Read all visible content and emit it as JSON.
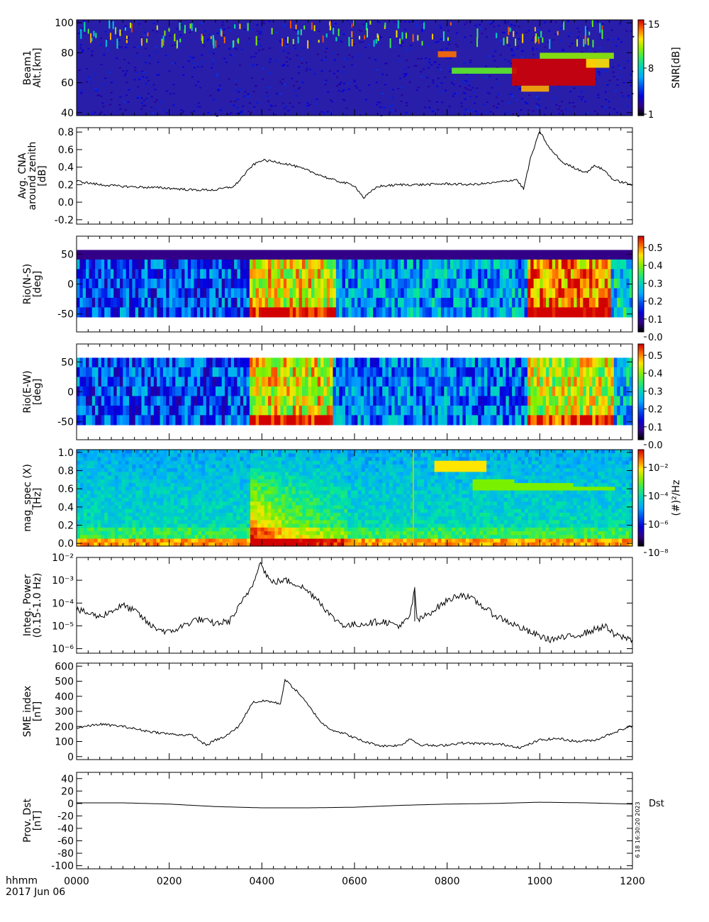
{
  "chart_data": [
    {
      "type": "heatmap",
      "ylabel": [
        "Beam1",
        "Alt.[km]"
      ],
      "ylim": [
        38,
        102
      ],
      "yticks": [
        40,
        60,
        80,
        100
      ],
      "colorbar": {
        "label": "SNR[dB]",
        "ticks": [
          "15",
          "8",
          "1"
        ],
        "range": [
          1,
          15
        ]
      },
      "features": [
        {
          "t0": 7.8,
          "t1": 8.2,
          "y0": 77,
          "y1": 81,
          "level": 0.9
        },
        {
          "t0": 8.1,
          "t1": 9.5,
          "y0": 66,
          "y1": 70,
          "level": 0.65
        },
        {
          "t0": 9.4,
          "t1": 11.2,
          "y0": 58,
          "y1": 76,
          "level": 1.0
        },
        {
          "t0": 9.6,
          "t1": 10.2,
          "y0": 54,
          "y1": 58,
          "level": 0.85
        },
        {
          "t0": 10.0,
          "t1": 11.6,
          "y0": 76,
          "y1": 80,
          "level": 0.7
        },
        {
          "t0": 11.0,
          "t1": 11.5,
          "y0": 70,
          "y1": 76,
          "level": 0.8
        }
      ]
    },
    {
      "type": "line",
      "ylabel": [
        "Avg. CNA",
        "around zenith",
        "[dB]"
      ],
      "ylim": [
        -0.25,
        0.85
      ],
      "yticks": [
        -0.2,
        0.0,
        0.2,
        0.4,
        0.6,
        0.8
      ],
      "yticklabels": [
        "-0.2",
        "0.0",
        "0.2",
        "0.4",
        "0.6",
        "0.8"
      ],
      "x": [
        0,
        0.5,
        1.0,
        1.5,
        2.0,
        2.5,
        3.0,
        3.4,
        3.6,
        3.8,
        4.0,
        4.3,
        4.6,
        5.0,
        5.5,
        6.0,
        6.2,
        6.5,
        7.0,
        7.5,
        8.0,
        8.5,
        9.0,
        9.5,
        9.65,
        9.8,
        10.0,
        10.2,
        10.5,
        10.8,
        11.0,
        11.2,
        11.4,
        11.6,
        12.0
      ],
      "y": [
        0.24,
        0.2,
        0.18,
        0.17,
        0.16,
        0.14,
        0.14,
        0.18,
        0.3,
        0.42,
        0.48,
        0.46,
        0.43,
        0.36,
        0.26,
        0.19,
        0.05,
        0.18,
        0.2,
        0.2,
        0.21,
        0.2,
        0.22,
        0.26,
        0.15,
        0.5,
        0.81,
        0.62,
        0.45,
        0.38,
        0.34,
        0.42,
        0.36,
        0.25,
        0.2
      ]
    },
    {
      "type": "heatmap",
      "ylabel": [
        "Rio(N-S)",
        "[deg]"
      ],
      "ylim": [
        -80,
        80
      ],
      "yticks": [
        -50,
        0,
        50
      ],
      "colorbar": {
        "ticks": [
          "0.5",
          "0.4",
          "0.3",
          "0.2",
          "0.1",
          "0.0"
        ],
        "range": [
          0,
          0.57
        ]
      },
      "rows": 7,
      "segments": [
        {
          "t0": 0,
          "t1": 3.7,
          "level": 0.17
        },
        {
          "t0": 3.7,
          "t1": 5.6,
          "level": 0.44
        },
        {
          "t0": 5.6,
          "t1": 9.7,
          "level": 0.23
        },
        {
          "t0": 9.7,
          "t1": 11.5,
          "level": 0.5
        },
        {
          "t0": 11.5,
          "t1": 12.0,
          "level": 0.27
        }
      ]
    },
    {
      "type": "heatmap",
      "ylabel": [
        "Rio(E-W)",
        "[deg]"
      ],
      "ylim": [
        -80,
        80
      ],
      "yticks": [
        -50,
        0,
        50
      ],
      "colorbar": {
        "ticks": [
          "0.5",
          "0.4",
          "0.3",
          "0.2",
          "0.1",
          "0.0"
        ],
        "range": [
          0,
          0.57
        ]
      },
      "rows": 7,
      "segments": [
        {
          "t0": 0,
          "t1": 3.7,
          "level": 0.17
        },
        {
          "t0": 3.7,
          "t1": 5.5,
          "level": 0.44
        },
        {
          "t0": 5.5,
          "t1": 9.7,
          "level": 0.2
        },
        {
          "t0": 9.7,
          "t1": 11.6,
          "level": 0.42
        },
        {
          "t0": 11.6,
          "t1": 12.0,
          "level": 0.25
        }
      ]
    },
    {
      "type": "heatmap",
      "ylabel": [
        "mag_spec (X)",
        "[Hz]"
      ],
      "ylim": [
        -0.03,
        1.03
      ],
      "yticks": [
        0.0,
        0.2,
        0.4,
        0.6,
        0.8,
        1.0
      ],
      "yticklabels": [
        "0.0",
        "0.2",
        "0.4",
        "0.6",
        "0.8",
        "1.0"
      ],
      "colorbar": {
        "label": "(#)²/Hz",
        "ticks": [
          "10⁻²",
          "10⁻⁴",
          "10⁻⁶",
          "10⁻⁸"
        ]
      }
    },
    {
      "type": "line",
      "ylabel": [
        "Integ. Power",
        "(0.15-1.0 Hz)"
      ],
      "yscale": "log",
      "ylim": [
        -6.2,
        -2
      ],
      "yticks": [
        -6,
        -5,
        -4,
        -3,
        -2
      ],
      "yticklabels": [
        "10⁻⁶",
        "10⁻⁵",
        "10⁻⁴",
        "10⁻³",
        "10⁻²"
      ],
      "x": [
        0,
        0.5,
        1.0,
        1.3,
        1.6,
        2.0,
        2.3,
        2.6,
        3.0,
        3.3,
        3.5,
        3.8,
        3.95,
        4.2,
        4.5,
        4.8,
        5.2,
        5.5,
        5.8,
        6.2,
        6.6,
        7.0,
        7.2,
        7.3,
        7.35,
        7.5,
        8.0,
        8.3,
        8.6,
        9.0,
        9.4,
        9.8,
        10.2,
        10.6,
        11.0,
        11.4,
        11.6,
        12.0
      ],
      "y": [
        -4.3,
        -4.6,
        -4.1,
        -4.4,
        -5.0,
        -5.3,
        -5.0,
        -4.7,
        -4.9,
        -4.8,
        -4.2,
        -3.2,
        -2.2,
        -3.1,
        -3.0,
        -3.2,
        -3.8,
        -4.6,
        -5.0,
        -4.9,
        -4.8,
        -5.0,
        -4.6,
        -3.3,
        -4.8,
        -4.6,
        -3.9,
        -3.6,
        -3.9,
        -4.5,
        -4.9,
        -5.3,
        -5.6,
        -5.5,
        -5.3,
        -5.0,
        -5.4,
        -5.6
      ]
    },
    {
      "type": "line",
      "ylabel": [
        "SME index",
        "[nT]"
      ],
      "ylim": [
        -20,
        620
      ],
      "yticks": [
        0,
        100,
        200,
        300,
        400,
        500,
        600
      ],
      "yticklabels": [
        "0",
        "100",
        "200",
        "300",
        "400",
        "500",
        "600"
      ],
      "x": [
        0,
        0.5,
        1.0,
        1.5,
        2.0,
        2.5,
        2.8,
        3.0,
        3.2,
        3.5,
        3.8,
        4.1,
        4.4,
        4.5,
        4.8,
        5.1,
        5.3,
        5.5,
        5.8,
        6.2,
        6.6,
        7.0,
        7.2,
        7.4,
        7.8,
        8.3,
        8.8,
        9.2,
        9.6,
        10.0,
        10.4,
        10.8,
        11.2,
        11.6,
        12.0
      ],
      "y": [
        190,
        215,
        200,
        170,
        150,
        140,
        75,
        110,
        130,
        200,
        360,
        370,
        350,
        510,
        420,
        300,
        220,
        180,
        150,
        100,
        70,
        75,
        120,
        80,
        70,
        90,
        85,
        80,
        60,
        110,
        120,
        100,
        110,
        160,
        205
      ]
    },
    {
      "type": "line",
      "ylabel": [
        "Prov. Dst",
        "[nT]"
      ],
      "ylim": [
        -105,
        50
      ],
      "yticks": [
        -100,
        -80,
        -60,
        -40,
        -20,
        0,
        20,
        40
      ],
      "yticklabels": [
        "-100",
        "-80",
        "-60",
        "-40",
        "-20",
        "0",
        "20",
        "40"
      ],
      "legend": "Dst",
      "stamp": "6 18 16:30:20 2023",
      "x": [
        0,
        1,
        2,
        3,
        4,
        5,
        6,
        7,
        8,
        9,
        10,
        11,
        12
      ],
      "y": [
        1,
        1,
        -1,
        -5,
        -7,
        -7,
        -6,
        -3,
        -1,
        0,
        2,
        1,
        -1
      ]
    }
  ],
  "x_axis": {
    "xlim": [
      0,
      12
    ],
    "ticks": [
      "0000",
      "0200",
      "0400",
      "0600",
      "0800",
      "1000",
      "1200"
    ],
    "unit_label": "hhmm",
    "date": "2017 Jun 06"
  }
}
